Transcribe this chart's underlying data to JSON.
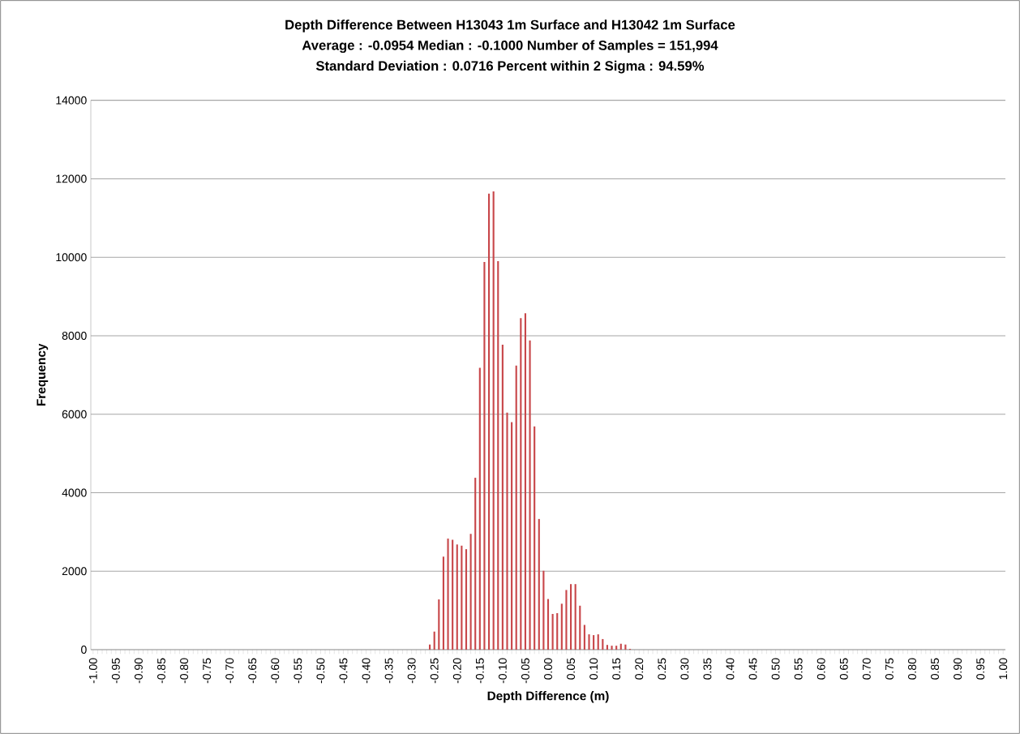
{
  "chart_data": {
    "type": "bar",
    "title": "Depth Difference Between H13043 1m Surface and H13042 1m Surface",
    "subtitle": "Average : -0.0954   Median : -0.1000   Number of Samples = 151,994",
    "annotations": [
      "Standard Deviation : 0.0716   Percent within 2 Sigma : 94.59%"
    ],
    "xlabel": "Depth Difference (m)",
    "ylabel": "Frequency",
    "categories": [
      "-1.00",
      null,
      null,
      null,
      null,
      "-0.95",
      null,
      null,
      null,
      null,
      "-0.90",
      null,
      null,
      null,
      null,
      "-0.85",
      null,
      null,
      null,
      null,
      "-0.80",
      null,
      null,
      null,
      null,
      "-0.75",
      null,
      null,
      null,
      null,
      "-0.70",
      null,
      null,
      null,
      null,
      "-0.65",
      null,
      null,
      null,
      null,
      "-0.60",
      null,
      null,
      null,
      null,
      "-0.55",
      null,
      null,
      null,
      null,
      "-0.50",
      null,
      null,
      null,
      null,
      "-0.45",
      null,
      null,
      null,
      null,
      "-0.40",
      null,
      null,
      null,
      null,
      "-0.35",
      null,
      null,
      null,
      null,
      "-0.30",
      null,
      null,
      null,
      null,
      "-0.25",
      null,
      null,
      null,
      null,
      "-0.20",
      null,
      null,
      null,
      null,
      "-0.15",
      null,
      null,
      null,
      null,
      "-0.10",
      null,
      null,
      null,
      null,
      "-0.05",
      null,
      null,
      null,
      null,
      "0.00",
      null,
      null,
      null,
      null,
      "0.05",
      null,
      null,
      null,
      null,
      "0.10",
      null,
      null,
      null,
      null,
      "0.15",
      null,
      null,
      null,
      null,
      "0.20",
      null,
      null,
      null,
      null,
      "0.25",
      null,
      null,
      null,
      null,
      "0.30",
      null,
      null,
      null,
      null,
      "0.35",
      null,
      null,
      null,
      null,
      "0.40",
      null,
      null,
      null,
      null,
      "0.45",
      null,
      null,
      null,
      null,
      "0.50",
      null,
      null,
      null,
      null,
      "0.55",
      null,
      null,
      null,
      null,
      "0.60",
      null,
      null,
      null,
      null,
      "0.65",
      null,
      null,
      null,
      null,
      "0.70",
      null,
      null,
      null,
      null,
      "0.75",
      null,
      null,
      null,
      null,
      "0.80",
      null,
      null,
      null,
      null,
      "0.85",
      null,
      null,
      null,
      null,
      "0.90",
      null,
      null,
      null,
      null,
      "0.95",
      null,
      null,
      null,
      null,
      "1.00"
    ],
    "values": [
      0,
      0,
      0,
      0,
      0,
      0,
      0,
      0,
      0,
      0,
      0,
      0,
      0,
      0,
      0,
      0,
      0,
      0,
      0,
      0,
      0,
      0,
      0,
      0,
      0,
      0,
      0,
      0,
      0,
      0,
      0,
      0,
      0,
      0,
      0,
      0,
      0,
      0,
      0,
      0,
      0,
      0,
      0,
      0,
      0,
      0,
      0,
      0,
      0,
      0,
      0,
      0,
      0,
      0,
      0,
      0,
      0,
      0,
      0,
      0,
      0,
      0,
      0,
      0,
      0,
      0,
      0,
      0,
      0,
      0,
      0,
      0,
      0,
      0,
      130,
      460,
      1280,
      2370,
      2830,
      2800,
      2680,
      2650,
      2560,
      2950,
      4380,
      7180,
      9880,
      11620,
      11680,
      9900,
      7770,
      6040,
      5800,
      7240,
      8450,
      8570,
      7880,
      5690,
      3330,
      2010,
      1290,
      910,
      930,
      1170,
      1520,
      1670,
      1670,
      1120,
      630,
      390,
      370,
      390,
      270,
      120,
      100,
      100,
      150,
      130,
      20,
      0,
      0,
      0,
      0,
      0,
      0,
      0,
      0,
      0,
      0,
      0,
      0,
      0,
      0,
      0,
      0,
      0,
      0,
      0,
      0,
      0,
      0,
      0,
      0,
      0,
      0,
      0,
      0,
      0,
      0,
      0,
      0,
      0,
      0,
      0,
      0,
      0,
      0,
      0,
      0,
      0,
      0,
      0,
      0,
      0,
      0,
      0,
      0,
      0,
      0,
      0,
      0,
      0,
      0,
      0,
      0,
      0,
      0,
      0,
      0,
      0,
      0,
      0,
      0,
      0,
      0,
      0,
      0,
      0,
      0,
      0,
      0,
      0,
      0,
      0,
      0,
      0,
      0,
      0,
      0,
      0,
      0
    ],
    "color": "#c8474a",
    "ylim": [
      0,
      14000
    ],
    "yticks": [
      0,
      2000,
      4000,
      6000,
      8000,
      10000,
      12000,
      14000
    ],
    "grid": "y"
  }
}
